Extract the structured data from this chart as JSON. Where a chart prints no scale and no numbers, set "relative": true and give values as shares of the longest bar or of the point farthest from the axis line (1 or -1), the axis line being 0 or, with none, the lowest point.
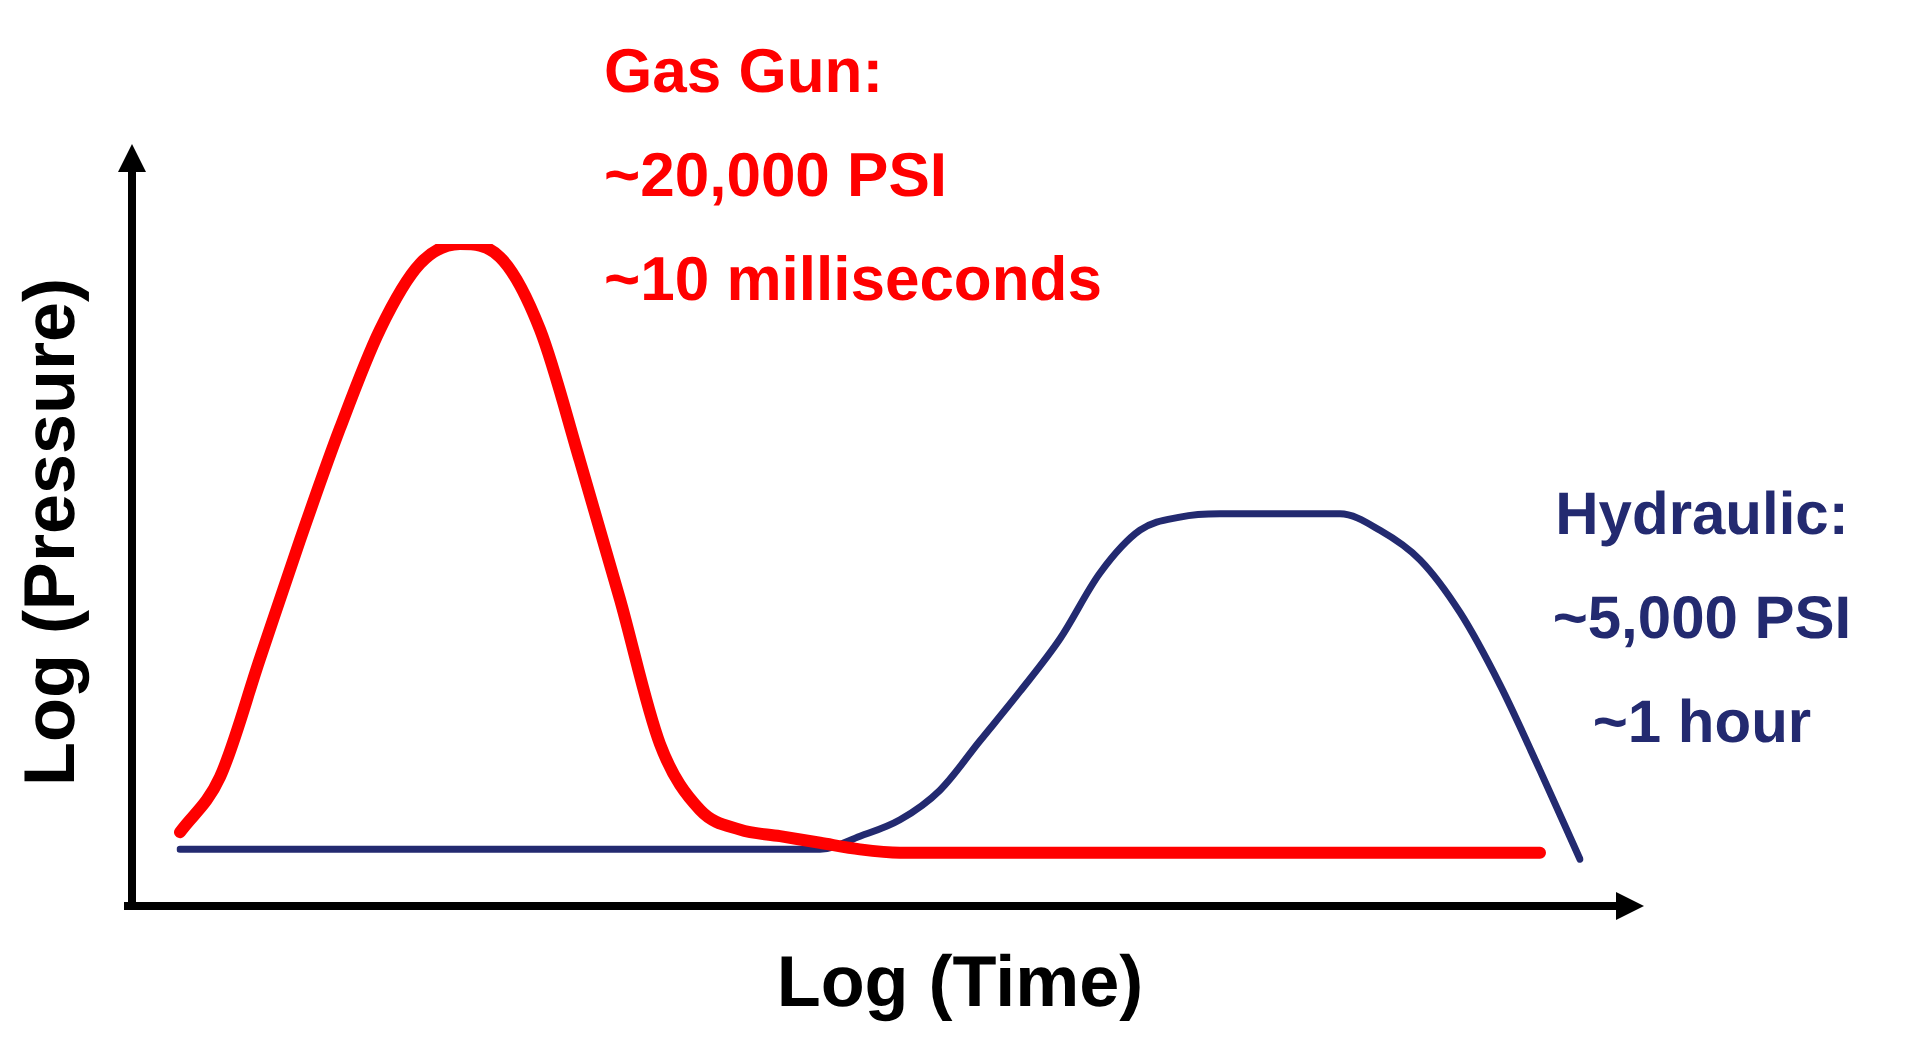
{
  "chart_data": {
    "type": "line",
    "relative": true,
    "xlabel": "Log (Time)",
    "ylabel": "Log (Pressure)",
    "marker": "none",
    "grid": false,
    "legend": false,
    "annotations": [
      "Gas Gun:\n~20,000 PSI\n~10 milliseconds",
      "Hydraulic:\n~5,000 PSI\n~1 hour"
    ],
    "categories": [
      null,
      null,
      null,
      null,
      null,
      null,
      null,
      null,
      null,
      null,
      null,
      null,
      null,
      null,
      null,
      null,
      null,
      null,
      null,
      null,
      null,
      null,
      null,
      null,
      null,
      null,
      null,
      null,
      null,
      null,
      null,
      null,
      null,
      null,
      null,
      null
    ],
    "series": [
      {
        "color": "#ff0000",
        "values": [
          0.106,
          0.19,
          0.37,
          0.55,
          0.72,
          0.87,
          0.97,
          1,
          0.98,
          0.87,
          0.67,
          0.46,
          0.24,
          0.14,
          0.11,
          0.1,
          0.09,
          0.08,
          0.075,
          0.075,
          0.075,
          0.075,
          0.075,
          0.075,
          0.075,
          0.075,
          0.075,
          0.075,
          0.075,
          0.075,
          0.075,
          0.075,
          0.075,
          0.075,
          0.075,
          null
        ]
      },
      {
        "color": "#232a70",
        "values": [
          0.08,
          0.08,
          0.08,
          0.08,
          0.08,
          0.08,
          0.08,
          0.08,
          0.08,
          0.08,
          0.08,
          0.08,
          0.08,
          0.08,
          0.08,
          0.08,
          0.08,
          0.1,
          0.125,
          0.17,
          0.245,
          0.32,
          0.4,
          0.5,
          0.565,
          0.585,
          0.59,
          0.59,
          0.59,
          0.59,
          0.565,
          0.52,
          0.44,
          0.33,
          0.2,
          0.065
        ]
      }
    ]
  }
}
